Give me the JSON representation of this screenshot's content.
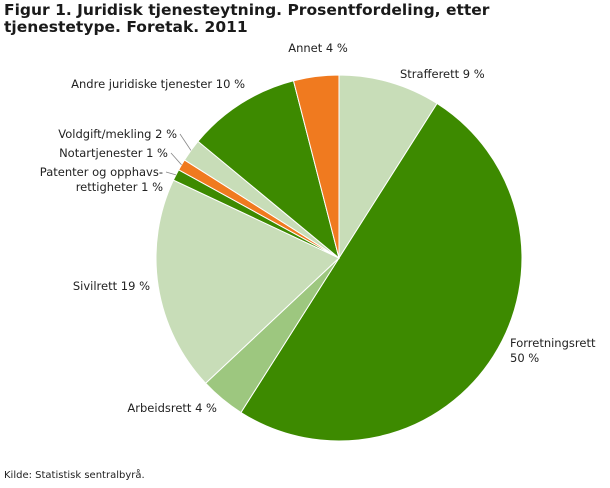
{
  "title": "Figur 1. Juridisk tjenesteytning. Prosentfordeling, etter tjenestetype. Foretak. 2011",
  "source": "Kilde: Statistisk sentralbyrå.",
  "chart_data": {
    "type": "pie",
    "title": "Figur 1. Juridisk tjenesteytning. Prosentfordeling, etter tjenestetype. Foretak. 2011",
    "unit": "%",
    "slices": [
      {
        "name": "Strafferett",
        "value": 9,
        "label": [
          "Strafferett 9 %"
        ],
        "color": "#c8ddb8"
      },
      {
        "name": "Forretningsrett",
        "value": 50,
        "label": [
          "Forretningsrett",
          "50 %"
        ],
        "color": "#3d8a00"
      },
      {
        "name": "Arbeidsrett",
        "value": 4,
        "label": [
          "Arbeidsrett 4 %"
        ],
        "color": "#9dc77f"
      },
      {
        "name": "Sivilrett",
        "value": 19,
        "label": [
          "Sivilrett 19 %"
        ],
        "color": "#c8ddb8"
      },
      {
        "name": "Patenter og opphavsrettigheter",
        "value": 1,
        "label": [
          "Patenter og opphavs-",
          "rettigheter 1 %"
        ],
        "color": "#3d8a00"
      },
      {
        "name": "Notarialtjenester",
        "value": 1,
        "label": [
          "Notartjenester 1 %"
        ],
        "color": "#f07a1f"
      },
      {
        "name": "Voldgift/mekling",
        "value": 2,
        "label": [
          "Voldgift/mekling 2 %"
        ],
        "color": "#c8ddb8"
      },
      {
        "name": "Andre juridiske tjenester",
        "value": 10,
        "label": [
          "Andre juridiske tjenester 10 %"
        ],
        "color": "#3d8a00"
      },
      {
        "name": "Annet",
        "value": 4,
        "label": [
          "Annet 4 %"
        ],
        "color": "#f07a1f"
      }
    ]
  }
}
